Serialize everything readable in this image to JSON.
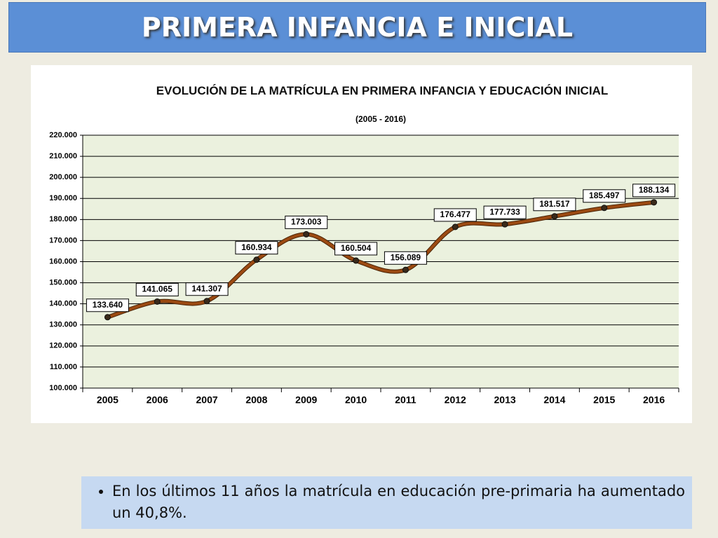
{
  "header": {
    "title": "PRIMERA INFANCIA E INICIAL"
  },
  "chart_data": {
    "type": "line",
    "title": "EVOLUCIÓN DE LA MATRÍCULA EN PRIMERA INFANCIA Y EDUCACIÓN INICIAL",
    "subtitle": "(2005 - 2016)",
    "categories": [
      "2005",
      "2006",
      "2007",
      "2008",
      "2009",
      "2010",
      "2011",
      "2012",
      "2013",
      "2014",
      "2015",
      "2016"
    ],
    "values": [
      133640,
      141065,
      141307,
      160934,
      173003,
      160504,
      156089,
      176477,
      177733,
      181517,
      185497,
      188134
    ],
    "value_labels": [
      "133.640",
      "141.065",
      "141.307",
      "160.934",
      "173.003",
      "160.504",
      "156.089",
      "176.477",
      "177.733",
      "181.517",
      "185.497",
      "188.134"
    ],
    "color": "#9c4a12",
    "ylim": [
      100000,
      220000
    ],
    "yticks": [
      {
        "value": 100000,
        "label": "100.000"
      },
      {
        "value": 110000,
        "label": "110.000"
      },
      {
        "value": 120000,
        "label": "120.000"
      },
      {
        "value": 130000,
        "label": "130.000"
      },
      {
        "value": 140000,
        "label": "140.000"
      },
      {
        "value": 150000,
        "label": "150.000"
      },
      {
        "value": 160000,
        "label": "160.000"
      },
      {
        "value": 170000,
        "label": "170.000"
      },
      {
        "value": 180000,
        "label": "180.000"
      },
      {
        "value": 190000,
        "label": "190.000"
      },
      {
        "value": 200000,
        "label": "200.000"
      },
      {
        "value": 210000,
        "label": "210.000"
      },
      {
        "value": 220000,
        "label": "220.000"
      }
    ],
    "grid": true
  },
  "bullet": {
    "text": "En los últimos 11 años la matrícula en educación pre-primaria ha aumentado un 40,8%."
  }
}
